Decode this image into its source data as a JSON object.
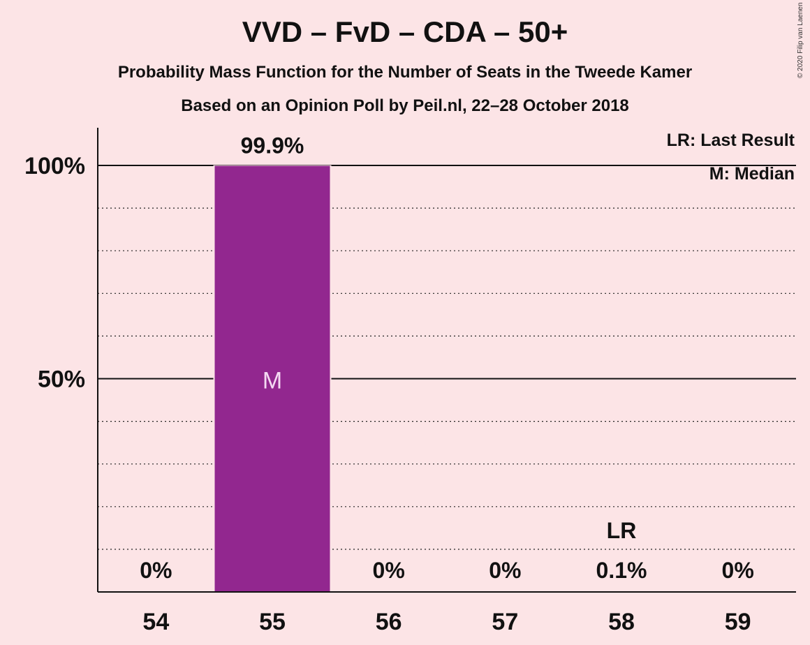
{
  "title": "VVD – FvD – CDA – 50+",
  "subtitle": "Probability Mass Function for the Number of Seats in the Tweede Kamer",
  "subtitle2": "Based on an Opinion Poll by Peil.nl, 22–28 October 2018",
  "copyright": "© 2020 Filip van Laenen",
  "legend": {
    "last_result": "LR: Last Result",
    "median": "M: Median"
  },
  "colors": {
    "bar": "#92278f",
    "background": "#fce4e6"
  },
  "chart_data": {
    "type": "bar",
    "categories": [
      "54",
      "55",
      "56",
      "57",
      "58",
      "59"
    ],
    "values": [
      0,
      99.9,
      0,
      0,
      0.1,
      0
    ],
    "value_labels": [
      "0%",
      "99.9%",
      "0%",
      "0%",
      "0.1%",
      "0%"
    ],
    "ylim": [
      0,
      110
    ],
    "yticks": [
      {
        "value": 50,
        "label": "50%"
      },
      {
        "value": 100,
        "label": "100%"
      }
    ],
    "median_category": "55",
    "median_marker": "M",
    "last_result_category": "58",
    "last_result_marker": "LR",
    "legend_position": "top-right"
  }
}
